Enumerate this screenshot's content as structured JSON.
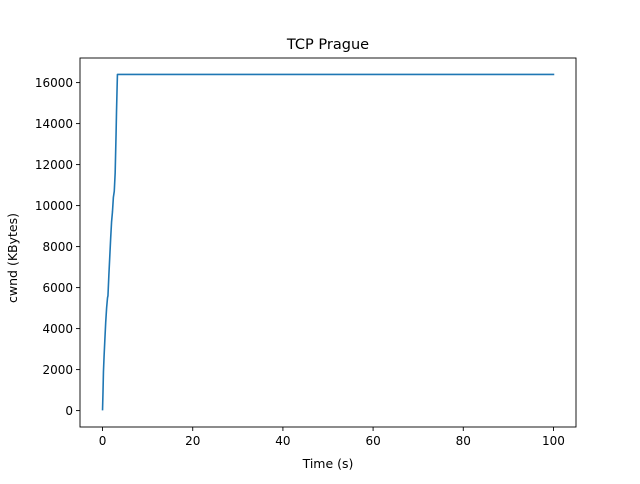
{
  "chart_data": {
    "type": "line",
    "title": "TCP Prague",
    "xlabel": "Time (s)",
    "ylabel": "cwnd (KBytes)",
    "xlim": [
      -5,
      105
    ],
    "ylim": [
      -800,
      17200
    ],
    "xticks": [
      0,
      20,
      40,
      60,
      80,
      100
    ],
    "yticks": [
      0,
      2000,
      4000,
      6000,
      8000,
      10000,
      12000,
      14000,
      16000
    ],
    "grid": false,
    "legend": "none",
    "series": [
      {
        "color": "#1f77b4",
        "x": [
          0,
          0.1,
          0.2,
          0.35,
          0.5,
          0.7,
          0.9,
          1.1,
          1.2,
          1.4,
          1.6,
          1.8,
          2.0,
          2.2,
          2.4,
          2.6,
          2.8,
          3.0,
          3.1,
          3.2,
          3.3,
          3.5,
          5,
          10,
          20,
          30,
          40,
          50,
          60,
          70,
          80,
          90,
          100
        ],
        "y": [
          50,
          900,
          1900,
          2700,
          3400,
          4300,
          5000,
          5500,
          5600,
          6600,
          7500,
          8400,
          9200,
          9700,
          10400,
          10700,
          11600,
          13500,
          14600,
          15500,
          16400,
          16400,
          16400,
          16400,
          16400,
          16400,
          16400,
          16400,
          16400,
          16400,
          16400,
          16400,
          16400
        ]
      }
    ]
  }
}
